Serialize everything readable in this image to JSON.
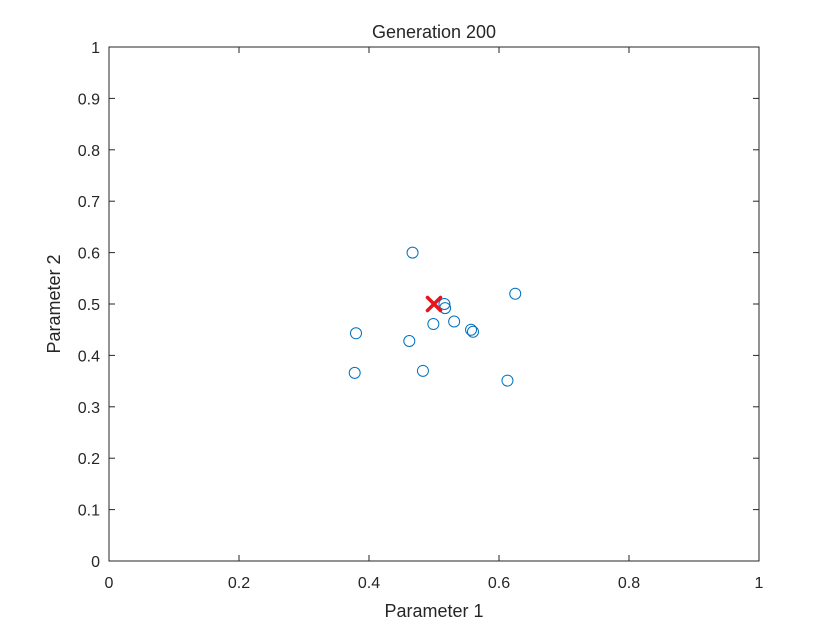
{
  "chart_data": {
    "type": "scatter",
    "title": "Generation 200",
    "xlabel": "Parameter 1",
    "ylabel": "Parameter 2",
    "xlim": [
      0,
      1
    ],
    "ylim": [
      0,
      1
    ],
    "xticks": [
      0,
      0.2,
      0.4,
      0.6,
      0.8,
      1
    ],
    "xtick_labels": [
      "0",
      "0.2",
      "0.4",
      "0.6",
      "0.8",
      "1"
    ],
    "yticks": [
      0,
      0.1,
      0.2,
      0.3,
      0.4,
      0.5,
      0.6,
      0.7,
      0.8,
      0.9,
      1
    ],
    "ytick_labels": [
      "0",
      "0.1",
      "0.2",
      "0.3",
      "0.4",
      "0.5",
      "0.6",
      "0.7",
      "0.8",
      "0.9",
      "1"
    ],
    "grid": false,
    "legend": "none",
    "series": [
      {
        "marker": "circle",
        "color": "#0072bd",
        "points": [
          {
            "x": 0.467,
            "y": 0.6
          },
          {
            "x": 0.625,
            "y": 0.52
          },
          {
            "x": 0.516,
            "y": 0.5
          },
          {
            "x": 0.517,
            "y": 0.492
          },
          {
            "x": 0.499,
            "y": 0.461
          },
          {
            "x": 0.531,
            "y": 0.466
          },
          {
            "x": 0.557,
            "y": 0.45
          },
          {
            "x": 0.56,
            "y": 0.446
          },
          {
            "x": 0.38,
            "y": 0.443
          },
          {
            "x": 0.462,
            "y": 0.428
          },
          {
            "x": 0.378,
            "y": 0.366
          },
          {
            "x": 0.483,
            "y": 0.37
          },
          {
            "x": 0.613,
            "y": 0.351
          }
        ]
      },
      {
        "marker": "x",
        "color": "#e8141c",
        "points": [
          {
            "x": 0.5,
            "y": 0.5
          }
        ]
      }
    ]
  }
}
